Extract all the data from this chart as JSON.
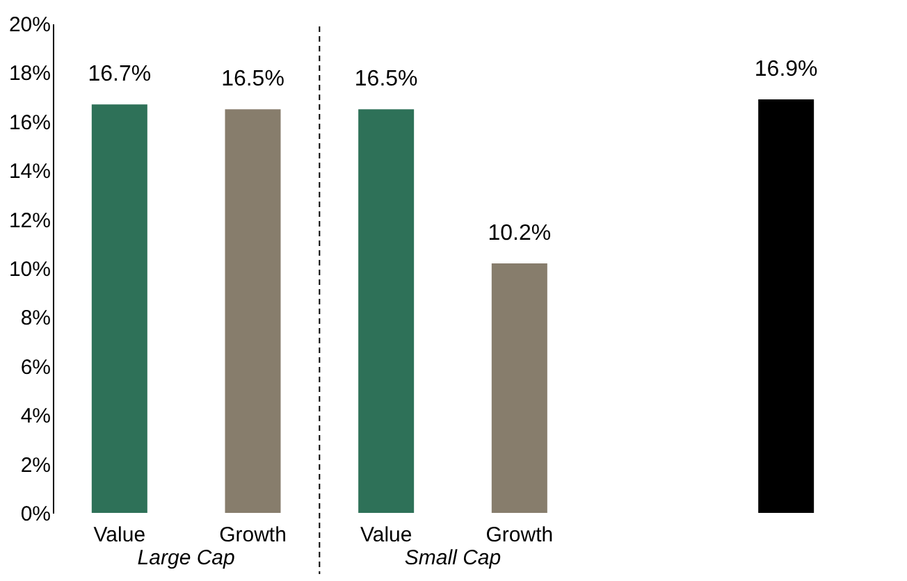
{
  "chart_data": {
    "type": "bar",
    "categories": [
      "Value",
      "Growth",
      "Value",
      "Growth",
      null,
      null
    ],
    "values": [
      16.7,
      16.5,
      16.5,
      10.2,
      null,
      16.9
    ],
    "colors": [
      "#2e7158",
      "#877d6c",
      "#2e7158",
      "#877d6c",
      "#000000",
      "#000000"
    ],
    "value_labels": [
      "16.7%",
      "16.5%",
      "16.5%",
      "10.2%",
      null,
      "16.9%"
    ],
    "ylim": [
      0,
      20
    ],
    "yticks": [
      {
        "value": 0,
        "label": "0%"
      },
      {
        "value": 2,
        "label": "2%"
      },
      {
        "value": 4,
        "label": "4%"
      },
      {
        "value": 6,
        "label": "6%"
      },
      {
        "value": 8,
        "label": "8%"
      },
      {
        "value": 10,
        "label": "10%"
      },
      {
        "value": 12,
        "label": "12%"
      },
      {
        "value": 14,
        "label": "14%"
      },
      {
        "value": 16,
        "label": "16%"
      },
      {
        "value": 18,
        "label": "18%"
      },
      {
        "value": 20,
        "label": "20%"
      }
    ],
    "annotations": [
      "Large Cap",
      "Small Cap"
    ],
    "grid": false
  }
}
